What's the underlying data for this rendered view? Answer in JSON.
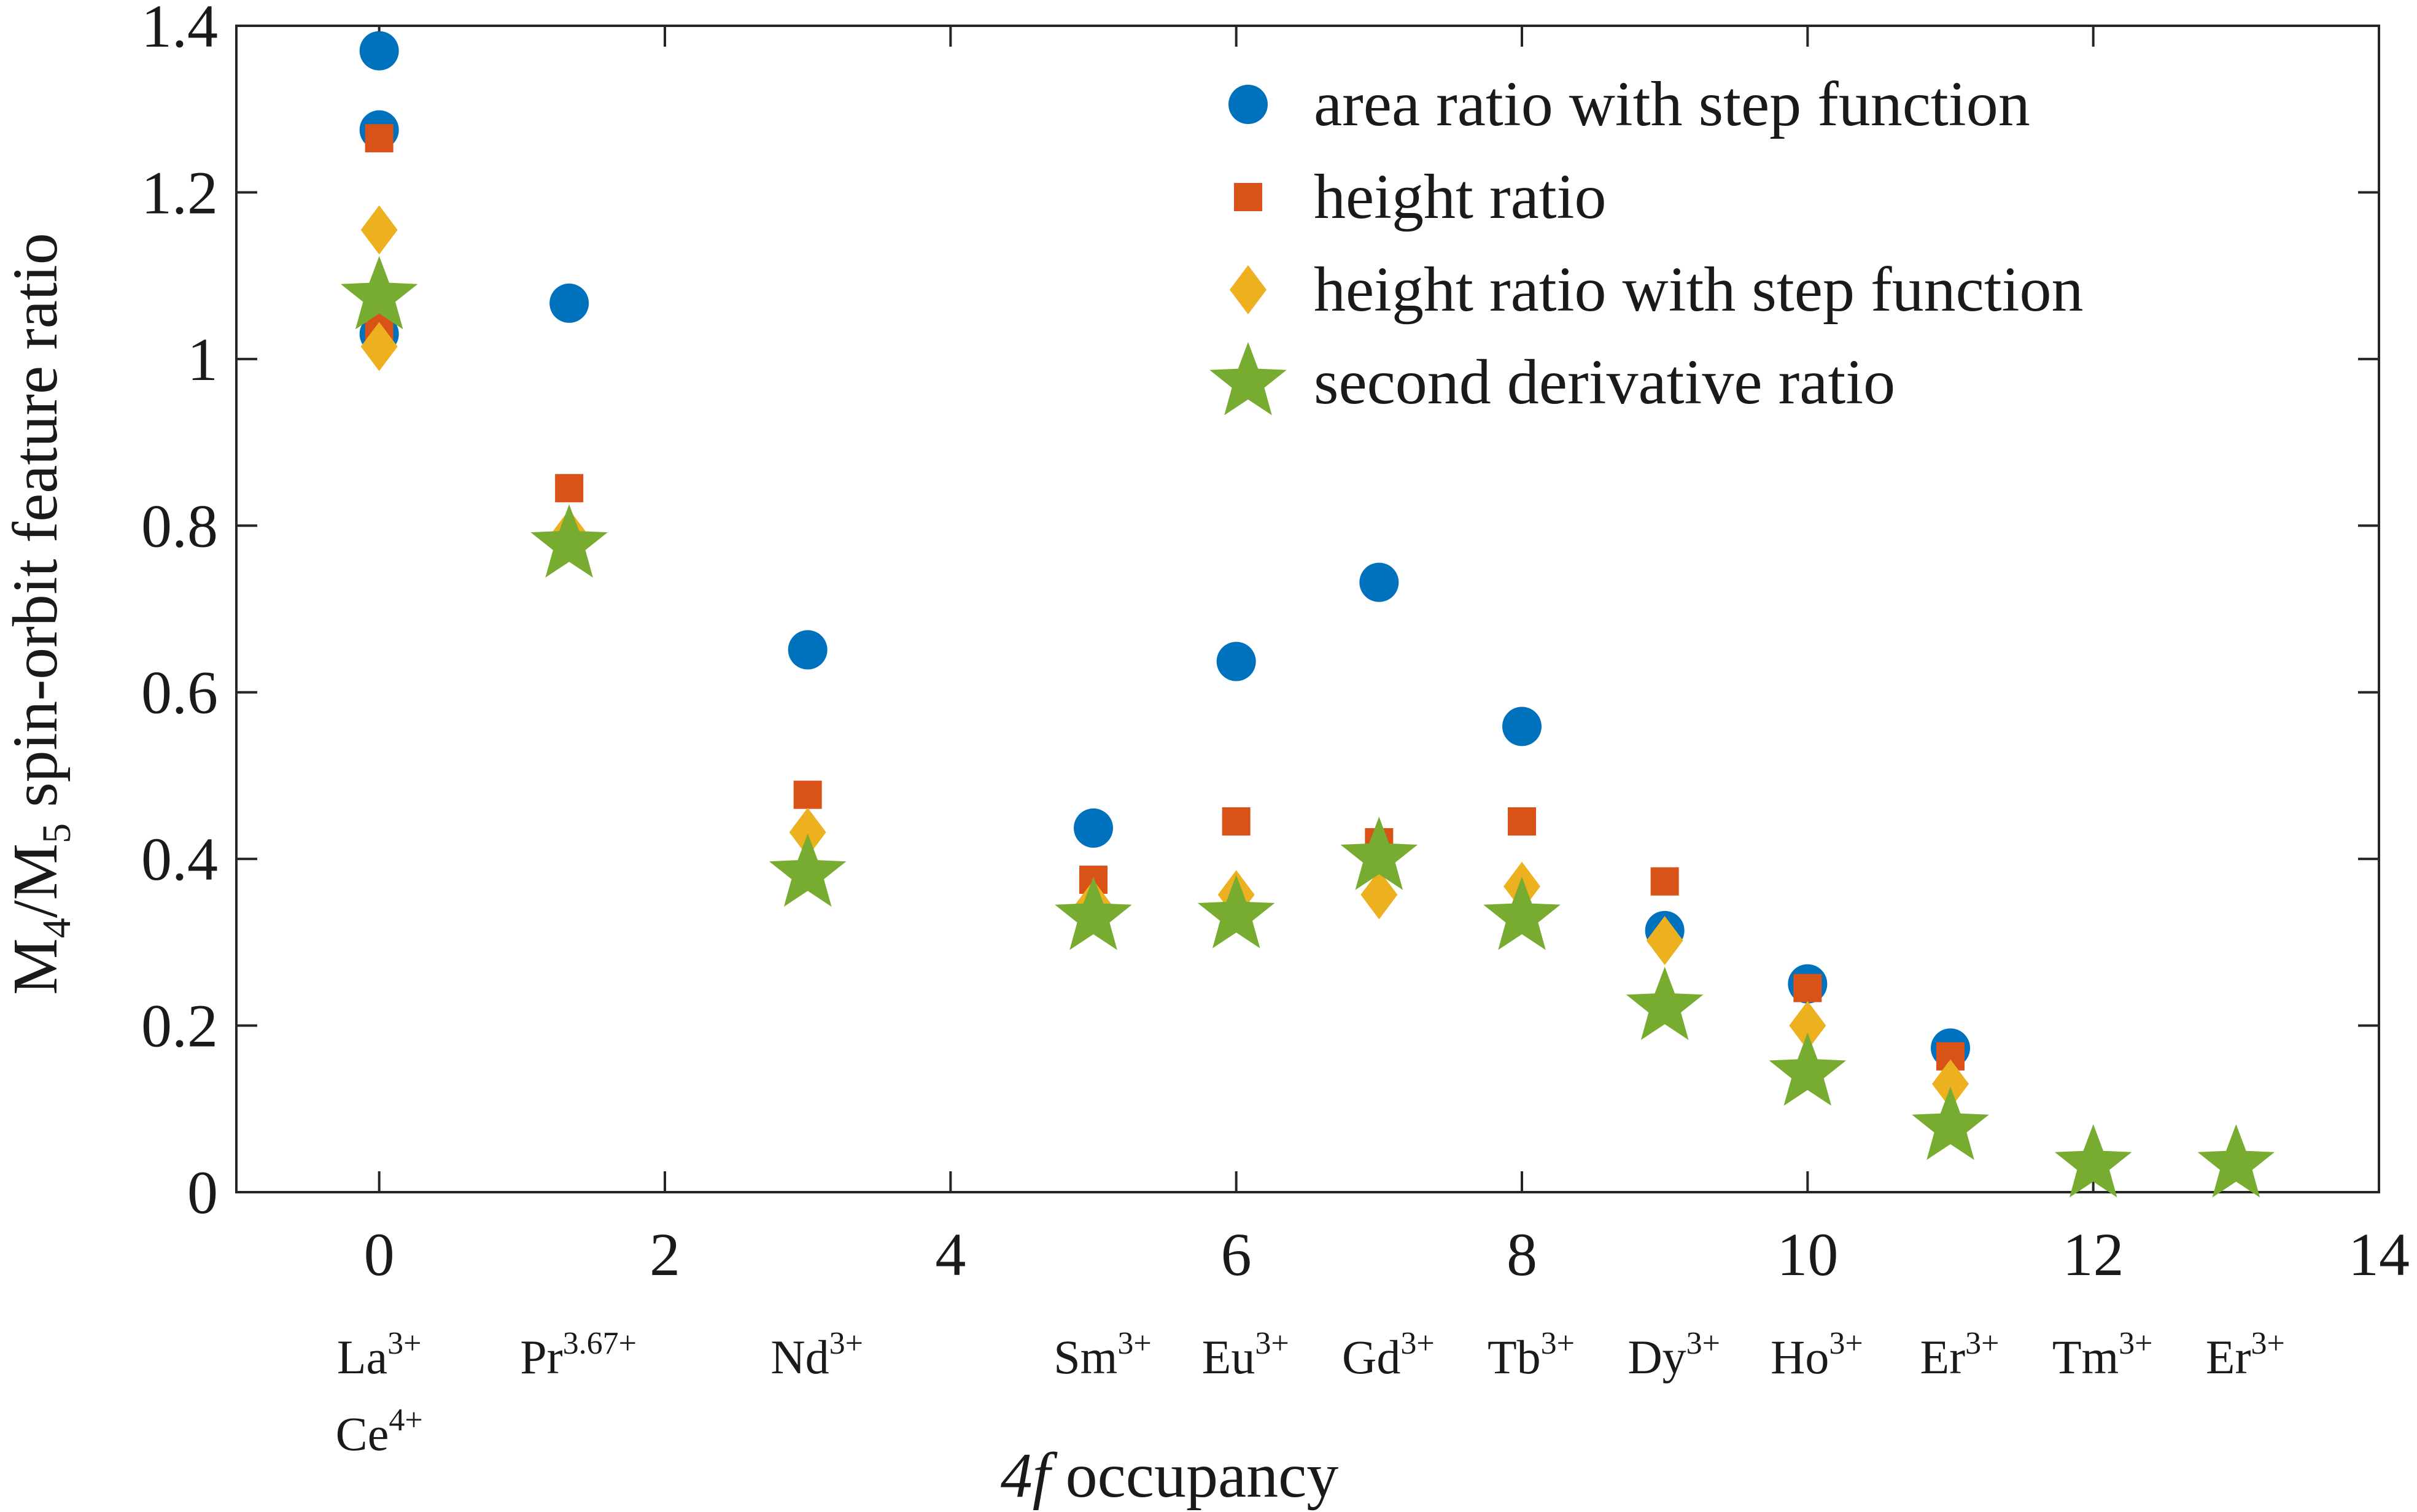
{
  "chart_data": {
    "type": "scatter",
    "title": "",
    "xlabel_italic": "4f",
    "xlabel_rest": "occupancy",
    "ylabel_parts": {
      "m": "M",
      "sub4": "4",
      "slash": "/M",
      "sub5": "5",
      "rest": " spin-orbit feature ratio"
    },
    "xlim": [
      -1,
      14
    ],
    "ylim": [
      0,
      1.4
    ],
    "xticks": [
      0,
      2,
      4,
      6,
      8,
      10,
      12,
      14
    ],
    "yticks": [
      0,
      0.2,
      0.4,
      0.6,
      0.8,
      1,
      1.2,
      1.4
    ],
    "ytick_labels": [
      "0",
      "0.2",
      "0.4",
      "0.6",
      "0.8",
      "1",
      "1.2",
      "1.4"
    ],
    "legend_position": "top-right",
    "ions": [
      {
        "x": 0,
        "lines": [
          {
            "base": "La",
            "sup": "3+"
          },
          {
            "base": "Ce",
            "sup": "4+"
          }
        ]
      },
      {
        "x": 1.33,
        "lines": [
          {
            "base": "Pr",
            "sup": "3.67+"
          }
        ]
      },
      {
        "x": 3,
        "lines": [
          {
            "base": "Nd",
            "sup": "3+"
          }
        ]
      },
      {
        "x": 5,
        "lines": [
          {
            "base": "Sm",
            "sup": "3+"
          }
        ]
      },
      {
        "x": 6,
        "lines": [
          {
            "base": "Eu",
            "sup": "3+"
          }
        ]
      },
      {
        "x": 7,
        "lines": [
          {
            "base": "Gd",
            "sup": "3+"
          }
        ]
      },
      {
        "x": 8,
        "lines": [
          {
            "base": "Tb",
            "sup": "3+"
          }
        ]
      },
      {
        "x": 9,
        "lines": [
          {
            "base": "Dy",
            "sup": "3+"
          }
        ]
      },
      {
        "x": 10,
        "lines": [
          {
            "base": "Ho",
            "sup": "3+"
          }
        ]
      },
      {
        "x": 11,
        "lines": [
          {
            "base": "Er",
            "sup": "3+"
          }
        ]
      },
      {
        "x": 12,
        "lines": [
          {
            "base": "Tm",
            "sup": "3+"
          }
        ]
      },
      {
        "x": 13,
        "lines": [
          {
            "base": "Er",
            "sup": "3+"
          }
        ]
      }
    ],
    "series": [
      {
        "name": "area ratio with step function",
        "marker": "circle",
        "color": "#0072BD",
        "points": [
          [
            0,
            1.37
          ],
          [
            0,
            1.275
          ],
          [
            0,
            1.03
          ],
          [
            1.33,
            1.067
          ],
          [
            3,
            0.651
          ],
          [
            5,
            0.437
          ],
          [
            6,
            0.637
          ],
          [
            7,
            0.732
          ],
          [
            8,
            0.559
          ],
          [
            9,
            0.314
          ],
          [
            10,
            0.25
          ],
          [
            11,
            0.173
          ]
        ]
      },
      {
        "name": "height ratio",
        "marker": "square",
        "color": "#D95319",
        "points": [
          [
            0,
            1.265
          ],
          [
            0,
            1.04
          ],
          [
            1.33,
            0.845
          ],
          [
            3,
            0.477
          ],
          [
            5,
            0.375
          ],
          [
            6,
            0.445
          ],
          [
            7,
            0.42
          ],
          [
            8,
            0.445
          ],
          [
            9,
            0.373
          ],
          [
            10,
            0.245
          ],
          [
            11,
            0.163
          ]
        ]
      },
      {
        "name": "height ratio with step function",
        "marker": "diamond",
        "color": "#EDB120",
        "points": [
          [
            0,
            1.155
          ],
          [
            0,
            1.015
          ],
          [
            1.33,
            0.79
          ],
          [
            3,
            0.432
          ],
          [
            5,
            0.345
          ],
          [
            6,
            0.357
          ],
          [
            7,
            0.357
          ],
          [
            8,
            0.367
          ],
          [
            9,
            0.302
          ],
          [
            10,
            0.2
          ],
          [
            11,
            0.13
          ]
        ]
      },
      {
        "name": "second derivative ratio",
        "marker": "star",
        "color": "#77AC30",
        "points": [
          [
            0,
            1.075
          ],
          [
            1.33,
            0.777
          ],
          [
            3,
            0.382
          ],
          [
            5,
            0.33
          ],
          [
            6,
            0.332
          ],
          [
            7,
            0.402
          ],
          [
            8,
            0.33
          ],
          [
            9,
            0.222
          ],
          [
            10,
            0.143
          ],
          [
            11,
            0.078
          ],
          [
            12,
            0.033
          ],
          [
            13,
            0.033
          ]
        ]
      }
    ]
  }
}
